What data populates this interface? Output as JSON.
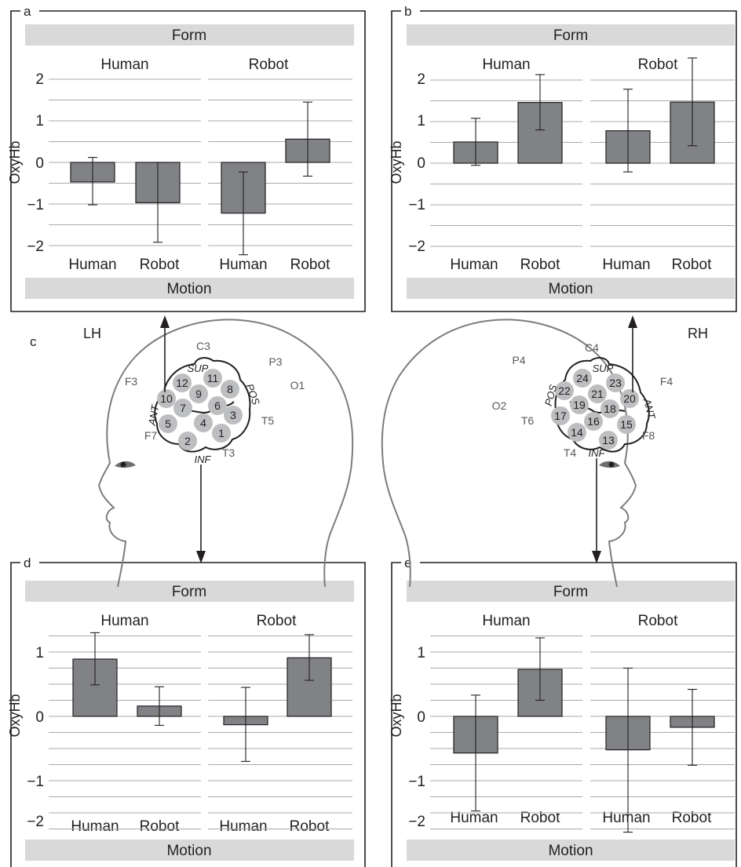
{
  "colors": {
    "bar": "#808285",
    "band": "#d9d9d9",
    "grid": "#a7a9ac",
    "head": "#7b7d80",
    "channel": "#bcbec0"
  },
  "common": {
    "form": "Form",
    "motion": "Motion",
    "human": "Human",
    "robot": "Robot",
    "ylabel": "OxyHb"
  },
  "panels": [
    {
      "letter": "a",
      "ylim": [
        -2,
        2
      ],
      "ticks": [
        "2",
        "1",
        "0",
        "−1",
        "−2"
      ]
    },
    {
      "letter": "b",
      "ylim": [
        -2,
        2
      ],
      "ticks": [
        "2",
        "1",
        "0",
        "−1",
        "−2"
      ]
    },
    {
      "letter": "d",
      "ylim": [
        -2,
        1
      ],
      "ticks": [
        "1",
        "0",
        "−1",
        "−2"
      ]
    },
    {
      "letter": "e",
      "ylim": [
        -2,
        1
      ],
      "ticks": [
        "1",
        "0",
        "−1",
        "−2"
      ]
    }
  ],
  "chart_data": [
    {
      "panel": "a",
      "type": "bar",
      "title": "",
      "ylabel": "OxyHb",
      "ylim": [
        -2,
        2
      ],
      "facet": "Form",
      "facets": [
        "Human",
        "Robot"
      ],
      "xlabel": "Motion",
      "categories": [
        "Human",
        "Robot"
      ],
      "bars": [
        {
          "form": "Human",
          "motion": "Human",
          "value": -0.47,
          "err_low": -1.02,
          "err_high": 0.12
        },
        {
          "form": "Human",
          "motion": "Robot",
          "value": -0.97,
          "err_low": -1.92,
          "err_high": 0.0
        },
        {
          "form": "Robot",
          "motion": "Human",
          "value": -1.22,
          "err_low": -2.22,
          "err_high": -0.23
        },
        {
          "form": "Robot",
          "motion": "Robot",
          "value": 0.56,
          "err_low": -0.33,
          "err_high": 1.45
        }
      ]
    },
    {
      "panel": "b",
      "type": "bar",
      "title": "",
      "ylabel": "OxyHb",
      "ylim": [
        -2,
        2
      ],
      "facet": "Form",
      "facets": [
        "Human",
        "Robot"
      ],
      "xlabel": "Motion",
      "categories": [
        "Human",
        "Robot"
      ],
      "bars": [
        {
          "form": "Human",
          "motion": "Human",
          "value": 0.51,
          "err_low": -0.05,
          "err_high": 1.08
        },
        {
          "form": "Human",
          "motion": "Robot",
          "value": 1.46,
          "err_low": 0.8,
          "err_high": 2.13
        },
        {
          "form": "Robot",
          "motion": "Human",
          "value": 0.78,
          "err_low": -0.21,
          "err_high": 1.78
        },
        {
          "form": "Robot",
          "motion": "Robot",
          "value": 1.47,
          "err_low": 0.42,
          "err_high": 2.53
        }
      ]
    },
    {
      "panel": "d",
      "type": "bar",
      "title": "",
      "ylabel": "OxyHb",
      "ylim": [
        -2,
        1.3
      ],
      "facet": "Form",
      "facets": [
        "Human",
        "Robot"
      ],
      "xlabel": "Motion",
      "categories": [
        "Human",
        "Robot"
      ],
      "bars": [
        {
          "form": "Human",
          "motion": "Human",
          "value": 0.89,
          "err_low": 0.49,
          "err_high": 1.3
        },
        {
          "form": "Human",
          "motion": "Robot",
          "value": 0.16,
          "err_low": -0.14,
          "err_high": 0.46
        },
        {
          "form": "Robot",
          "motion": "Human",
          "value": -0.13,
          "err_low": -0.7,
          "err_high": 0.45
        },
        {
          "form": "Robot",
          "motion": "Robot",
          "value": 0.91,
          "err_low": 0.56,
          "err_high": 1.27
        }
      ]
    },
    {
      "panel": "e",
      "type": "bar",
      "title": "",
      "ylabel": "OxyHb",
      "ylim": [
        -2,
        1.3
      ],
      "facet": "Form",
      "facets": [
        "Human",
        "Robot"
      ],
      "xlabel": "Motion",
      "categories": [
        "Human",
        "Robot"
      ],
      "bars": [
        {
          "form": "Human",
          "motion": "Human",
          "value": -0.57,
          "err_low": -1.47,
          "err_high": 0.33
        },
        {
          "form": "Human",
          "motion": "Robot",
          "value": 0.73,
          "err_low": 0.25,
          "err_high": 1.22
        },
        {
          "form": "Robot",
          "motion": "Human",
          "value": -0.52,
          "err_low": -1.8,
          "err_high": 0.75
        },
        {
          "form": "Robot",
          "motion": "Robot",
          "value": -0.17,
          "err_low": -0.76,
          "err_high": 0.42
        }
      ]
    }
  ],
  "heads": {
    "letter": "c",
    "left": {
      "hemisphere": "LH",
      "eeg": [
        "C3",
        "P3",
        "F3",
        "O1",
        "T5",
        "F7",
        "T3"
      ],
      "dirs": [
        "SUP",
        "POS",
        "ANT",
        "INF"
      ],
      "channels": [
        "1",
        "2",
        "3",
        "4",
        "5",
        "6",
        "7",
        "8",
        "9",
        "10",
        "11",
        "12"
      ]
    },
    "right": {
      "hemisphere": "RH",
      "eeg": [
        "C4",
        "P4",
        "F4",
        "O2",
        "T6",
        "F8",
        "T4"
      ],
      "dirs": [
        "SUP",
        "POS",
        "ANT",
        "INF"
      ],
      "channels": [
        "13",
        "14",
        "15",
        "16",
        "17",
        "18",
        "19",
        "20",
        "21",
        "22",
        "23",
        "24"
      ]
    }
  }
}
